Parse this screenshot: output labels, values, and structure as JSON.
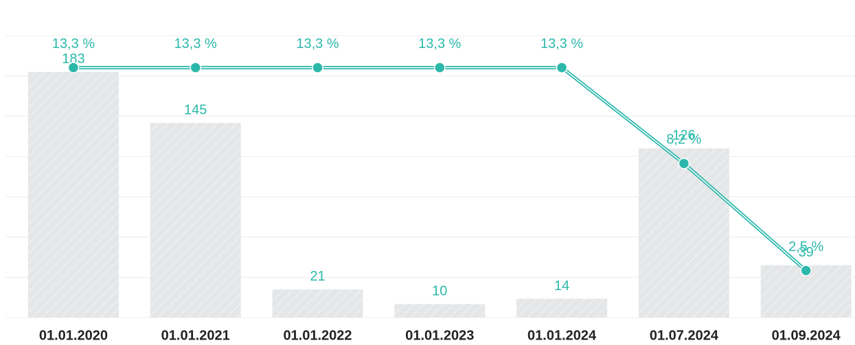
{
  "chart_data": {
    "type": "bar-line",
    "categories": [
      "01.01.2020",
      "01.01.2021",
      "01.01.2022",
      "01.01.2023",
      "01.01.2024",
      "01.07.2024",
      "01.09.2024"
    ],
    "series": [
      {
        "type": "bar",
        "color": "#e4e6e8",
        "values": [
          183,
          145,
          21,
          10,
          14,
          126,
          39
        ]
      },
      {
        "type": "line",
        "axis": "y2",
        "color": "#2bb8aa",
        "values": [
          13.3,
          13.3,
          13.3,
          13.3,
          13.3,
          8.2,
          2.5
        ],
        "value_labels": [
          "13,3 %",
          "13,3 %",
          "13,3 %",
          "13,3 %",
          "13,3 %",
          "8,2 %",
          "2,5 %"
        ]
      }
    ],
    "ylim": [
      0,
      210
    ],
    "yticks": [
      0,
      30,
      60,
      90,
      120,
      150,
      180,
      210
    ],
    "y2lim": [
      0,
      15
    ],
    "grid": true
  }
}
